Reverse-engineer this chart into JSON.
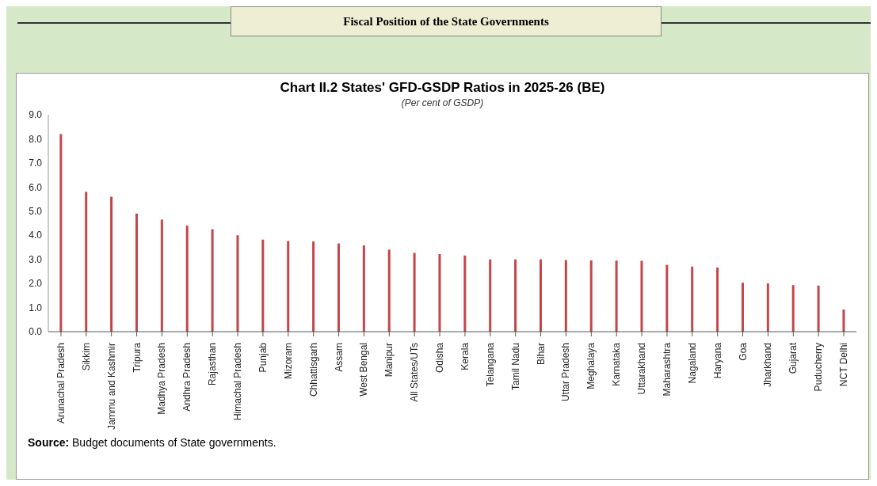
{
  "chart_data": {
    "type": "bar",
    "title": "Chart II.2 States' GFD-GSDP Ratios in 2025-26 (BE)",
    "subtitle": "(Per cent of GSDP)",
    "annotations": [
      "Fiscal Position of the State Governments",
      "Source: Budget documents of State governments."
    ],
    "categories": [
      "Arunachal Pradesh",
      "Sikkim",
      "Jammu and Kashmir",
      "Tripura",
      "Madhya Pradesh",
      "Andhra Pradesh",
      "Rajasthan",
      "Himachal Pradesh",
      "Punjab",
      "Mizoram",
      "Chhattisgarh",
      "Assam",
      "West Bengal",
      "Manipur",
      "All States/UTs",
      "Odisha",
      "Kerala",
      "Telangana",
      "Tamil Nadu",
      "Bihar",
      "Uttar Pradesh",
      "Meghalaya",
      "Karnataka",
      "Uttarakhand",
      "Maharashtra",
      "Nagaland",
      "Haryana",
      "Goa",
      "Jharkhand",
      "Gujarat",
      "Puducherry",
      "NCT Delhi"
    ],
    "values": [
      8.2,
      5.8,
      5.6,
      4.9,
      4.65,
      4.4,
      4.25,
      4.0,
      3.82,
      3.76,
      3.74,
      3.66,
      3.58,
      3.4,
      3.27,
      3.22,
      3.16,
      3.0,
      3.0,
      3.0,
      2.97,
      2.96,
      2.95,
      2.94,
      2.77,
      2.7,
      2.66,
      2.03,
      2.0,
      1.93,
      1.91,
      0.92
    ],
    "color": "#c4454a",
    "ylim": [
      0,
      9
    ],
    "yticks": [
      {
        "value": 0,
        "label": "0.0"
      },
      {
        "value": 1,
        "label": "1.0"
      },
      {
        "value": 2,
        "label": "2.0"
      },
      {
        "value": 3,
        "label": "3.0"
      },
      {
        "value": 4,
        "label": "4.0"
      },
      {
        "value": 5,
        "label": "5.0"
      },
      {
        "value": 6,
        "label": "6.0"
      },
      {
        "value": 7,
        "label": "7.0"
      },
      {
        "value": 8,
        "label": "8.0"
      },
      {
        "value": 9,
        "label": "9.0"
      }
    ],
    "grid": false,
    "legend": false
  }
}
